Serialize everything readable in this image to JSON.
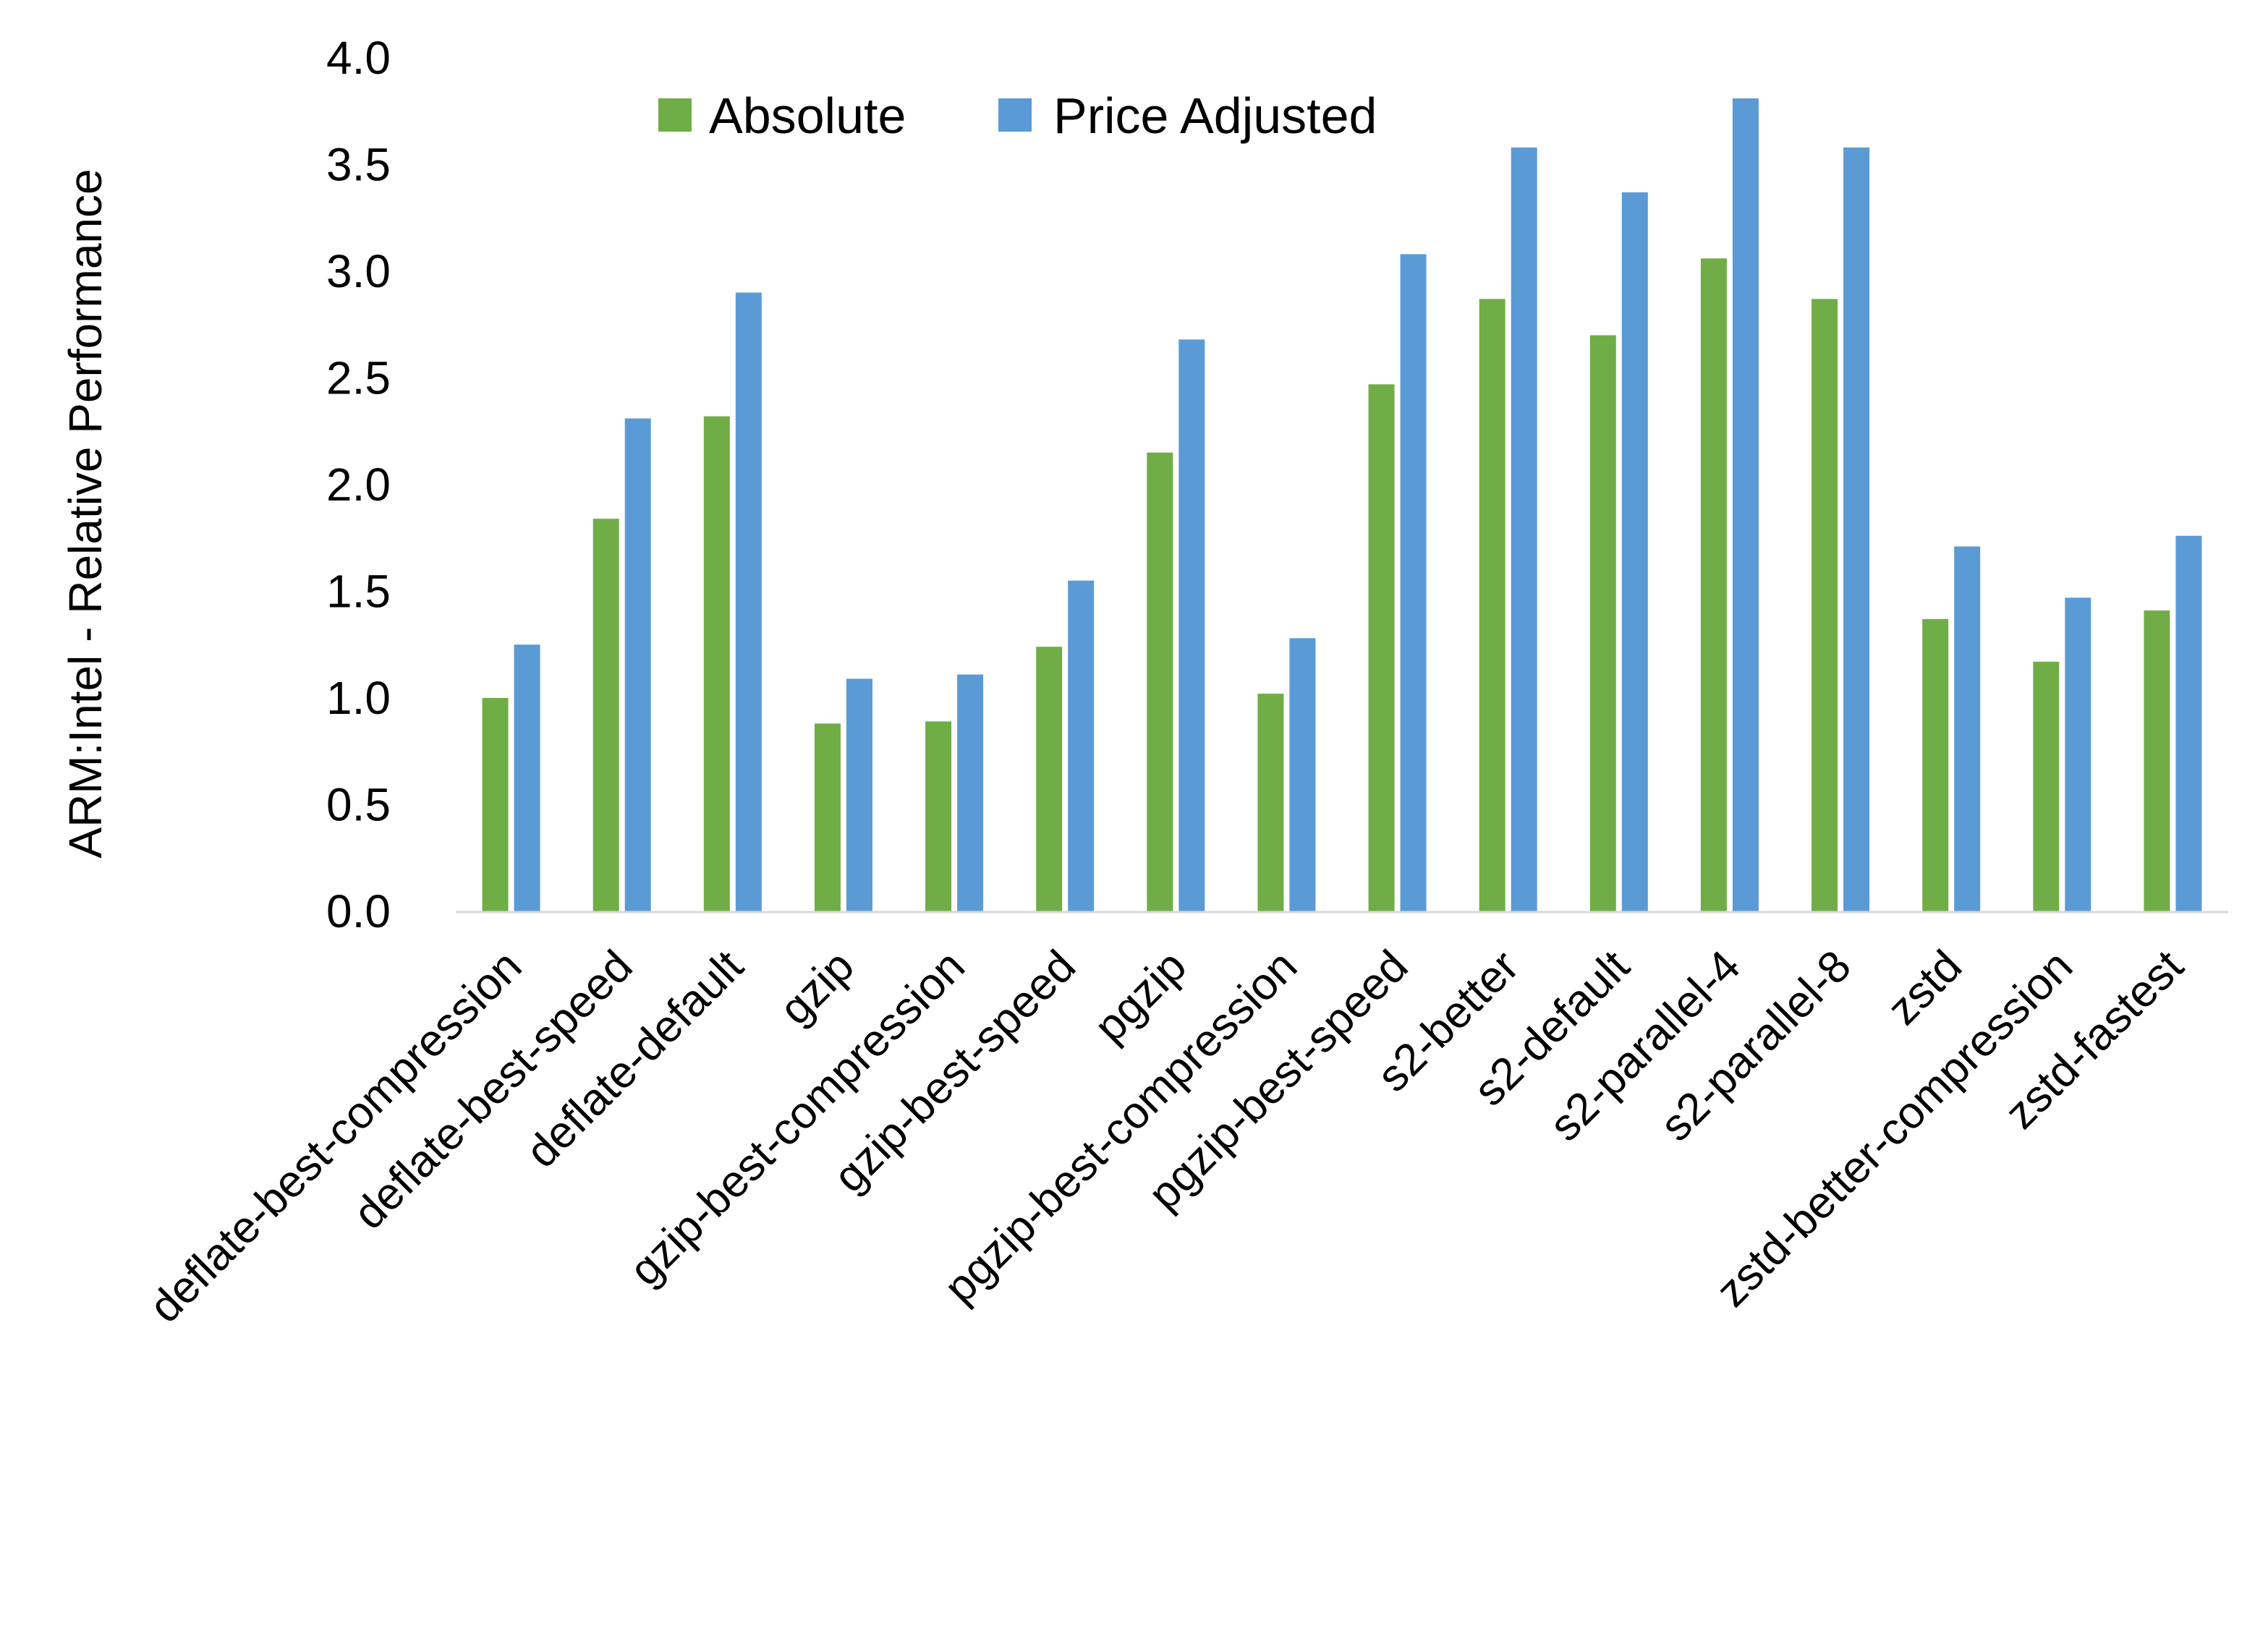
{
  "chart_data": {
    "type": "bar",
    "title": "",
    "xlabel": "",
    "ylabel": "ARM:Intel - Relative Performance",
    "ylim": [
      0,
      4.0
    ],
    "yticks": [
      "0.0",
      "0.5",
      "1.0",
      "1.5",
      "2.0",
      "2.5",
      "3.0",
      "3.5",
      "4.0"
    ],
    "grid": false,
    "legend_position": "top",
    "categories": [
      "deflate-best-compression",
      "deflate-best-speed",
      "deflate-default",
      "gzip",
      "gzip-best-compression",
      "gzip-best-speed",
      "pgzip",
      "pgzip-best-compression",
      "pgzip-best-speed",
      "s2-better",
      "s2-default",
      "s2-parallel-4",
      "s2-parallel-8",
      "zstd",
      "zstd-better-compression",
      "zstd-fastest"
    ],
    "series": [
      {
        "name": "Absolute",
        "color": "#70AD47",
        "values": [
          1.0,
          1.84,
          2.32,
          0.88,
          0.89,
          1.24,
          2.15,
          1.02,
          2.47,
          2.87,
          2.7,
          3.06,
          2.87,
          1.37,
          1.17,
          1.41
        ]
      },
      {
        "name": "Price Adjusted",
        "color": "#5B9BD5",
        "values": [
          1.25,
          2.31,
          2.9,
          1.09,
          1.11,
          1.55,
          2.68,
          1.28,
          3.08,
          3.58,
          3.37,
          3.81,
          3.58,
          1.71,
          1.47,
          1.76
        ]
      }
    ],
    "axis_color": "#D9D9D9"
  }
}
